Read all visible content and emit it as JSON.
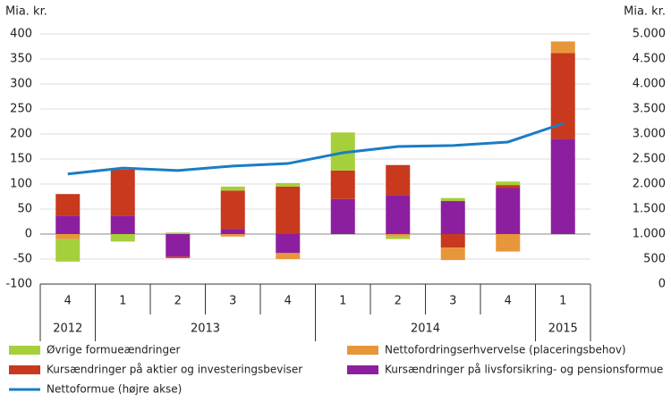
{
  "chart_data": {
    "type": "stacked-bar-line",
    "y_label": "Mia. kr.",
    "y2_label": "Mia. kr.",
    "categories": [
      "4",
      "1",
      "2",
      "3",
      "4",
      "1",
      "2",
      "3",
      "4",
      "1"
    ],
    "years": [
      "2012",
      "2013",
      "2013",
      "2013",
      "2013",
      "2014",
      "2014",
      "2014",
      "2014",
      "2015"
    ],
    "series": [
      {
        "name": "Øvrige formueændringer",
        "color": "#a6cf3c",
        "values": [
          -45,
          -15,
          3,
          8,
          7,
          76,
          -5,
          6,
          7,
          0
        ]
      },
      {
        "name": "Nettofordringserhvervelse (placeringsbehov)",
        "color": "#e8963a",
        "values": [
          -10,
          0,
          0,
          -5,
          -12,
          0,
          -5,
          -25,
          -35,
          23
        ]
      },
      {
        "name": "Kursændringer på aktier og investeringsbeviser",
        "color": "#c8391d",
        "values": [
          43,
          92,
          -3,
          77,
          95,
          57,
          60,
          -27,
          6,
          172
        ]
      },
      {
        "name": "Kursændringer på livsforsikring- og pensionsformue",
        "color": "#8c1fa0",
        "values": [
          37,
          37,
          -45,
          10,
          -38,
          70,
          78,
          66,
          92,
          190
        ]
      },
      {
        "name": "Nettoformue (højre akse)",
        "color": "#1a7dc4",
        "axis": "y2",
        "type": "line",
        "values": [
          2200,
          2320,
          2270,
          2360,
          2410,
          2625,
          2750,
          2770,
          2840,
          3210
        ]
      }
    ],
    "stack_order": [
      3,
      2,
      1,
      0
    ],
    "ylim": [
      -100,
      400
    ],
    "yticks": [
      -100,
      -50,
      0,
      50,
      100,
      150,
      200,
      250,
      300,
      350,
      400
    ],
    "y2lim": [
      0,
      5000
    ],
    "y2ticks": [
      0,
      {
        "value": 500,
        "label": "500"
      },
      {
        "value": 1000,
        "label": "1.000"
      },
      {
        "value": 1500,
        "label": "1.500"
      },
      {
        "value": 2000,
        "label": "2.000"
      },
      {
        "value": 2500,
        "label": "2.500"
      },
      {
        "value": 3000,
        "label": "3.000"
      },
      {
        "value": 3500,
        "label": "3.500"
      },
      {
        "value": 4000,
        "label": "4.000"
      },
      {
        "value": 4500,
        "label": "4.500"
      },
      {
        "value": 5000,
        "label": "5.000"
      }
    ],
    "grid": true
  }
}
